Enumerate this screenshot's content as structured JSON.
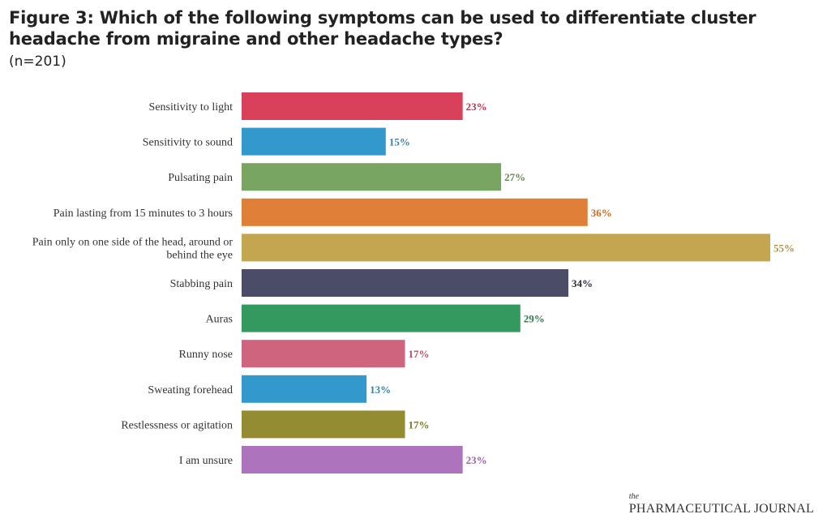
{
  "chart_data": {
    "type": "bar",
    "orientation": "horizontal",
    "title": "Figure 3: Which of the following symptoms can be used to differentiate cluster headache from migraine and other headache types?",
    "subtitle": "(n=201)",
    "categories": [
      [
        "Sensitivity to light"
      ],
      [
        "Sensitivity to sound"
      ],
      [
        "Pulsating pain"
      ],
      [
        "Pain lasting from 15 minutes to 3 hours"
      ],
      [
        "Pain only on one side of the head, around or",
        "behind the eye"
      ],
      [
        "Stabbing pain"
      ],
      [
        "Auras"
      ],
      [
        "Runny nose"
      ],
      [
        "Sweating forehead"
      ],
      [
        "Restlessness or agitation"
      ],
      [
        "I am unsure"
      ]
    ],
    "values": [
      23,
      15,
      27,
      36,
      55,
      34,
      29,
      17,
      13,
      17,
      23
    ],
    "value_suffix": "%",
    "colors": [
      "#d9405a",
      "#3399cc",
      "#79a563",
      "#e07f38",
      "#c4a550",
      "#4b4d68",
      "#33995e",
      "#cf647e",
      "#3399cc",
      "#938c33",
      "#ad74bd"
    ],
    "label_colors": [
      "#c0334b",
      "#2b86b5",
      "#5f8a4b",
      "#c96a24",
      "#b39238",
      "#2e2e3e",
      "#2c7d4e",
      "#b84e69",
      "#2b86b5",
      "#7d7628",
      "#9a5fab"
    ],
    "xlim": [
      0,
      55
    ],
    "xlabel": "",
    "ylabel": "",
    "grid": false,
    "legend": "none"
  },
  "branding": {
    "small": "the",
    "main": "PHARMACEUTICAL JOURNAL"
  }
}
